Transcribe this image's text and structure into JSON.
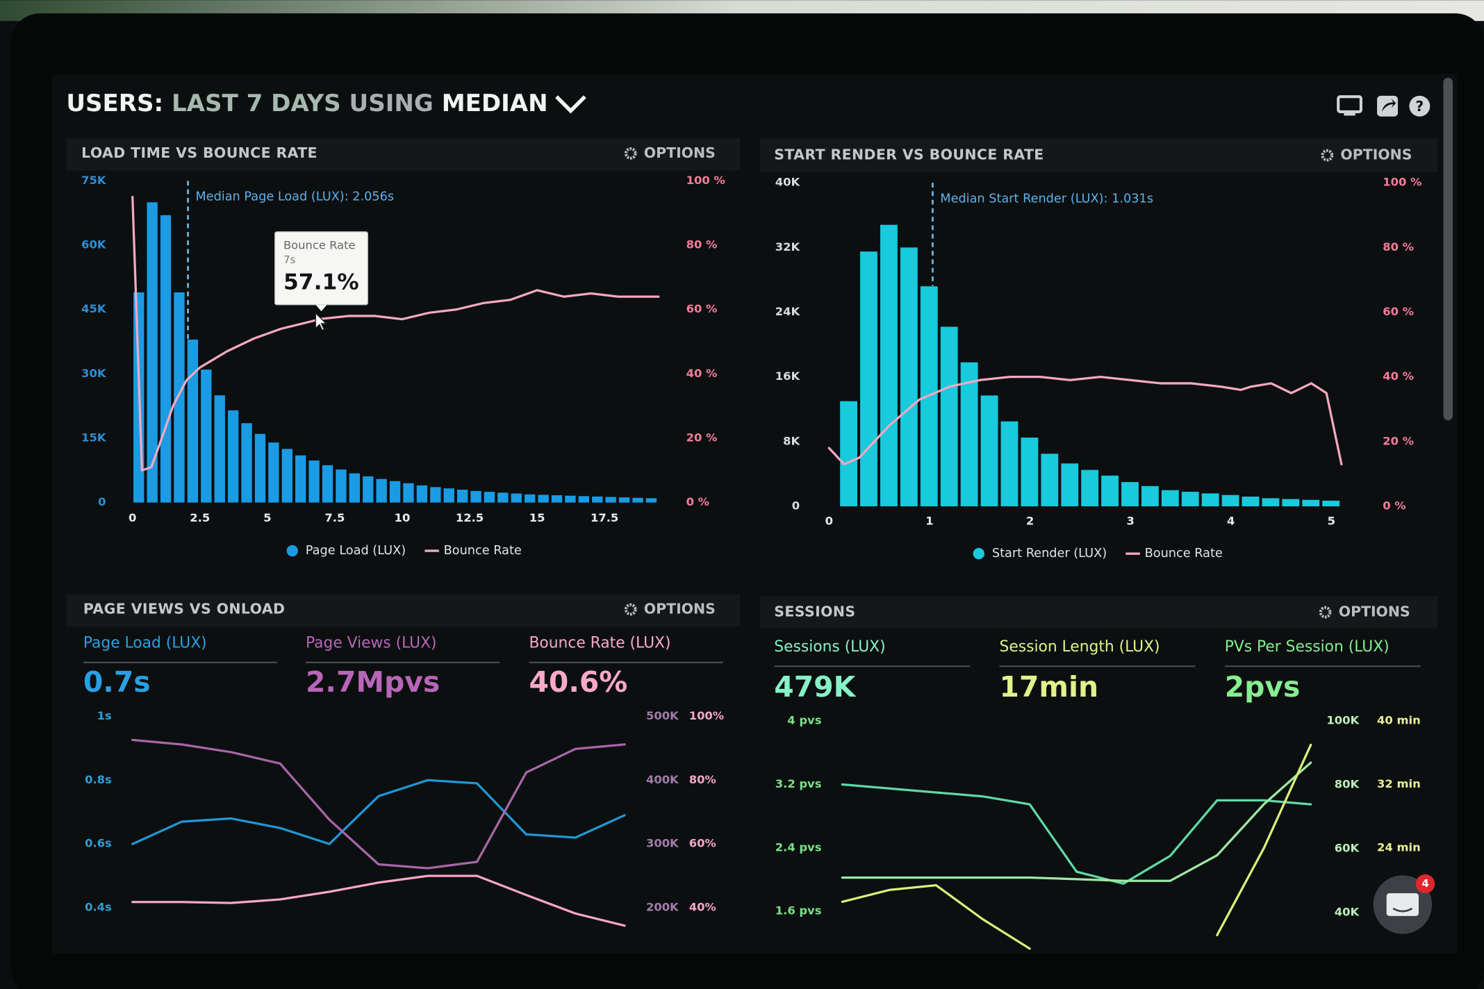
{
  "header": {
    "parts": [
      "USERS:",
      "LAST 7 DAYS",
      "USING",
      "MEDIAN"
    ]
  },
  "panels": [
    {
      "title": "LOAD TIME VS BOUNCE RATE",
      "options": "OPTIONS"
    },
    {
      "title": "START RENDER VS BOUNCE RATE",
      "options": "OPTIONS"
    },
    {
      "title": "PAGE VIEWS VS ONLOAD",
      "options": "OPTIONS",
      "kpis": [
        {
          "label": "Page Load (LUX)",
          "value": "0.7s",
          "color": "#2aa0e2"
        },
        {
          "label": "Page Views (LUX)",
          "value": "2.7Mpvs",
          "color": "#b866b9"
        },
        {
          "label": "Bounce Rate (LUX)",
          "value": "40.6%",
          "color": "#f8a9c6"
        }
      ]
    },
    {
      "title": "SESSIONS",
      "options": "OPTIONS",
      "kpis": [
        {
          "label": "Sessions (LUX)",
          "value": "479K",
          "color": "#86f2c8"
        },
        {
          "label": "Session Length (LUX)",
          "value": "17min",
          "color": "#e2f28a"
        },
        {
          "label": "PVs Per Session (LUX)",
          "value": "2pvs",
          "color": "#86ef90"
        }
      ]
    }
  ],
  "widget": {
    "badge": "4"
  },
  "chart_data": [
    {
      "type": "histogram",
      "bins": [
        0,
        0.5,
        1,
        1.5,
        2,
        2.5,
        3,
        3.5,
        4,
        4.5,
        5,
        5.5,
        6,
        6.5,
        7,
        7.5,
        8,
        8.5,
        9,
        9.5,
        10,
        10.5,
        11,
        11.5,
        12,
        12.5,
        13,
        13.5,
        14,
        14.5,
        15,
        15.5,
        16,
        16.5,
        17,
        17.5,
        18,
        18.5,
        19,
        19.5
      ],
      "series": [
        {
          "name": "Page Load (LUX)",
          "color": "#1b9be3",
          "values": [
            49000,
            70000,
            67000,
            49000,
            38000,
            31000,
            25000,
            21500,
            18500,
            16000,
            14000,
            12500,
            11000,
            9800,
            8700,
            7700,
            6800,
            6100,
            5500,
            5000,
            4500,
            4000,
            3600,
            3300,
            3000,
            2700,
            2500,
            2300,
            2100,
            1900,
            1800,
            1700,
            1600,
            1500,
            1400,
            1300,
            1200,
            1100,
            1000
          ]
        },
        {
          "name": "Bounce Rate",
          "color": "#f5a8c2",
          "axis": "y2",
          "x": [
            0,
            0.35,
            0.7,
            1,
            1.5,
            2,
            2.5,
            3.5,
            4.5,
            5.5,
            7,
            8,
            9,
            10,
            11,
            12,
            13,
            14,
            15,
            16,
            17,
            18,
            19.5
          ],
          "values": [
            95,
            10,
            11,
            18,
            30,
            38,
            42,
            47,
            51,
            54,
            57.1,
            58,
            58,
            57,
            59,
            60,
            62,
            63,
            66,
            64,
            65,
            64,
            64
          ]
        }
      ],
      "xlim": [
        0,
        20
      ],
      "xticks": [
        0,
        2.5,
        5,
        7.5,
        10,
        12.5,
        15,
        17.5
      ],
      "ylim": [
        0,
        75000
      ],
      "yticks": [
        0,
        {
          "value": 15000,
          "label": "15K"
        },
        {
          "value": 30000,
          "label": "30K"
        },
        {
          "value": 45000,
          "label": "45K"
        },
        {
          "value": 60000,
          "label": "60K"
        },
        {
          "value": 75000,
          "label": "75K"
        }
      ],
      "y2lim": [
        0,
        100
      ],
      "y2ticks": [
        {
          "value": 0,
          "label": "0 %"
        },
        {
          "value": 20,
          "label": "20 %"
        },
        {
          "value": 40,
          "label": "40 %"
        },
        {
          "value": 60,
          "label": "60 %"
        },
        {
          "value": 80,
          "label": "80 %"
        },
        {
          "value": 100,
          "label": "100 %"
        }
      ],
      "annotations": [
        {
          "text": "Median Page Load (LUX): 2.056s",
          "x": 2.056
        }
      ],
      "tooltip": {
        "title": "Bounce Rate",
        "subtitle": "7s",
        "label": "57.1%",
        "x": 7,
        "value": 57.1
      }
    },
    {
      "type": "histogram",
      "bins": [
        0.1,
        0.3,
        0.5,
        0.7,
        0.9,
        1.1,
        1.3,
        1.5,
        1.7,
        1.9,
        2.1,
        2.3,
        2.5,
        2.7,
        2.9,
        3.1,
        3.3,
        3.5,
        3.7,
        3.9,
        4.1,
        4.3,
        4.5,
        4.7,
        4.9,
        5.1
      ],
      "series": [
        {
          "name": "Start Render (LUX)",
          "color": "#19c9dc",
          "values": [
            13000,
            31500,
            34800,
            32000,
            27200,
            22200,
            17800,
            13700,
            10500,
            8500,
            6500,
            5300,
            4500,
            3800,
            3000,
            2500,
            2000,
            1800,
            1600,
            1400,
            1200,
            1000,
            900,
            800,
            700
          ]
        },
        {
          "name": "Bounce Rate",
          "color": "#f5a8c2",
          "axis": "y2",
          "x": [
            0,
            0.15,
            0.3,
            0.6,
            0.9,
            1.2,
            1.5,
            1.8,
            2.1,
            2.4,
            2.7,
            3,
            3.3,
            3.6,
            3.9,
            4.1,
            4.2,
            4.4,
            4.6,
            4.8,
            4.95,
            5.1
          ],
          "values": [
            18,
            13,
            15,
            25,
            33,
            37,
            39,
            40,
            40,
            39,
            40,
            39,
            38,
            38,
            37,
            36,
            37,
            38,
            35,
            38,
            35,
            13
          ]
        }
      ],
      "xlim": [
        0,
        5.2
      ],
      "xticks": [
        0,
        1,
        2,
        3,
        4,
        5
      ],
      "ylim": [
        0,
        40000
      ],
      "yticks": [
        0,
        {
          "value": 8000,
          "label": "8K"
        },
        {
          "value": 16000,
          "label": "16K"
        },
        {
          "value": 24000,
          "label": "24K"
        },
        {
          "value": 32000,
          "label": "32K"
        },
        {
          "value": 40000,
          "label": "40K"
        }
      ],
      "y2lim": [
        0,
        100
      ],
      "y2ticks": [
        {
          "value": 0,
          "label": "0 %"
        },
        {
          "value": 20,
          "label": "20 %"
        },
        {
          "value": 40,
          "label": "40 %"
        },
        {
          "value": 60,
          "label": "60 %"
        },
        {
          "value": 80,
          "label": "80 %"
        },
        {
          "value": 100,
          "label": "100 %"
        }
      ],
      "annotations": [
        {
          "text": "Median Start Render (LUX): 1.031s",
          "x": 1.031
        }
      ]
    },
    {
      "type": "line",
      "categories": [
        null,
        null,
        null,
        null,
        null,
        null,
        null,
        null,
        null,
        null,
        null
      ],
      "series": [
        {
          "color": "#2196d3",
          "values": [
            0.6,
            0.67,
            0.68,
            0.65,
            0.6,
            0.75,
            0.8,
            0.79,
            0.63,
            0.62,
            0.69
          ]
        },
        {
          "color": "#a766a8",
          "axis": "y2",
          "values": [
            463000,
            456000,
            444000,
            426000,
            338000,
            268000,
            262000,
            272000,
            412000,
            449000,
            456000
          ]
        },
        {
          "color": "#f7a6c4",
          "axis": "y3",
          "values": [
            41.8,
            41.8,
            41.5,
            42.6,
            45,
            47.9,
            50,
            50,
            44,
            38.2,
            34.4
          ]
        }
      ],
      "ylim": [
        0.3,
        1
      ],
      "yticks": [
        {
          "value": 0.4,
          "label": "0.4s"
        },
        {
          "value": 0.6,
          "label": "0.6s"
        },
        {
          "value": 0.8,
          "label": "0.8s"
        },
        {
          "value": 1,
          "label": "1s"
        }
      ],
      "y2lim": [
        150000,
        500000
      ],
      "y2ticks": [
        {
          "value": 200000,
          "label": "200K"
        },
        {
          "value": 300000,
          "label": "300K"
        },
        {
          "value": 400000,
          "label": "400K"
        },
        {
          "value": 500000,
          "label": "500K"
        }
      ],
      "y3lim": [
        30,
        100
      ],
      "y3ticks": [
        {
          "value": 40,
          "label": "40%"
        },
        {
          "value": 60,
          "label": "60%"
        },
        {
          "value": 80,
          "label": "80%"
        },
        {
          "value": 100,
          "label": "100%"
        }
      ]
    },
    {
      "type": "line",
      "categories": [
        null,
        null,
        null,
        null,
        null,
        null,
        null,
        null,
        null,
        null,
        null
      ],
      "series": [
        {
          "color": "#5fd9a6",
          "values": [
            3.2,
            3.15,
            3.1,
            3.05,
            2.95,
            2.1,
            1.95,
            2.3,
            3,
            3,
            2.95
          ]
        },
        {
          "color": "#9fe8a6",
          "axis": "y2",
          "values": [
            51000,
            51000,
            51000,
            51000,
            51000,
            50500,
            50000,
            50000,
            58000,
            74000,
            87000
          ]
        },
        {
          "color": "#d8f07a",
          "axis": "y3",
          "values": [
            17.2,
            18.7,
            19.3,
            15,
            11.3,
            null,
            null,
            null,
            13,
            24,
            37
          ]
        }
      ],
      "ylim": [
        1.1,
        4
      ],
      "yticks": [
        {
          "value": 1.6,
          "label": "1.6 pvs"
        },
        {
          "value": 2.4,
          "label": "2.4 pvs"
        },
        {
          "value": 3.2,
          "label": "3.2 pvs"
        },
        {
          "value": 4,
          "label": "4 pvs"
        }
      ],
      "y2lim": [
        28000,
        100000
      ],
      "y2ticks": [
        {
          "value": 40000,
          "label": "40K"
        },
        {
          "value": 60000,
          "label": "60K"
        },
        {
          "value": 80000,
          "label": "80K"
        },
        {
          "value": 100000,
          "label": "100K"
        }
      ],
      "y3lim": [
        11,
        40
      ],
      "y3ticks": [
        {
          "value": 24,
          "label": "24 min"
        },
        {
          "value": 32,
          "label": "32 min"
        },
        {
          "value": 40,
          "label": "40 min"
        }
      ]
    }
  ]
}
